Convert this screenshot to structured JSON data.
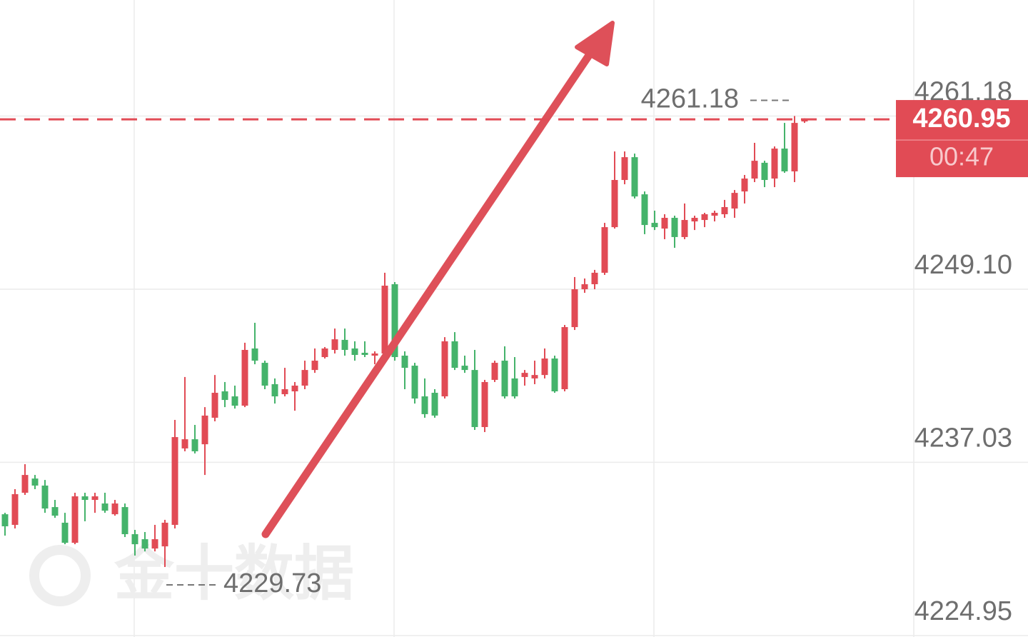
{
  "chart_data": {
    "type": "candlestick",
    "watermark": "金十数据",
    "countdown": "00:47",
    "up_color": "#e14b55",
    "down_color": "#45b36b",
    "ylim": [
      4224.85,
      4269.27
    ],
    "yticks": [
      4224.95,
      4237.03,
      {
        "value": 4249.1,
        "label": "4249.10"
      },
      4261.18
    ],
    "grid": true,
    "open": [
      4233.41,
      4232.67,
      4234.91,
      4235.9,
      4235.41,
      4233.91,
      4232.82,
      4231.42,
      4234.66,
      4234.41,
      4234.16,
      4233.41,
      4233.91,
      4232.02,
      4231.67,
      4231.02,
      4231.17,
      4232.67,
      4238.0,
      4238.64,
      4238.29,
      4240.14,
      4241.98,
      4241.63,
      4240.98,
      4244.97,
      4243.97,
      4242.48,
      4241.78,
      4241.98,
      4242.38,
      4243.47,
      4244.37,
      4244.87,
      4245.57,
      4244.97,
      4244.67,
      4244.47,
      4244.62,
      4249.45,
      4244.47,
      4243.77,
      4241.63,
      4241.88,
      4241.63,
      4245.47,
      4243.77,
      4243.47,
      4239.49,
      4242.78,
      4244.12,
      4242.88,
      4242.98,
      4242.88,
      4243.12,
      4244.27,
      4242.13,
      4246.46,
      4249.1,
      4249.45,
      4250.25,
      4253.43,
      4256.72,
      4258.31,
      4255.72,
      4253.73,
      4253.33,
      4254.08,
      4252.74,
      4253.83,
      4253.93,
      4254.23,
      4254.33,
      4254.73,
      4255.92,
      4256.82,
      4257.92,
      4256.82,
      4258.91,
      4257.32,
      4260.8
    ],
    "high": [
      4233.51,
      4235.16,
      4236.9,
      4236.15,
      4235.8,
      4234.41,
      4233.51,
      4234.91,
      4234.91,
      4234.91,
      4234.91,
      4234.41,
      4234.16,
      4232.32,
      4232.17,
      4232.67,
      4233.02,
      4239.99,
      4242.98,
      4239.64,
      4240.88,
      4243.12,
      4242.63,
      4242.38,
      4245.37,
      4246.76,
      4244.12,
      4242.88,
      4243.62,
      4242.63,
      4244.12,
      4244.97,
      4245.07,
      4246.36,
      4246.36,
      4245.47,
      4245.47,
      4244.77,
      4250.25,
      4249.6,
      4244.77,
      4243.97,
      4242.88,
      4242.13,
      4245.76,
      4246.11,
      4244.47,
      4244.87,
      4242.78,
      4244.12,
      4245.12,
      4244.37,
      4243.47,
      4244.12,
      4244.97,
      4244.47,
      4246.61,
      4249.95,
      4249.85,
      4250.45,
      4253.73,
      4258.71,
      4258.71,
      4258.56,
      4255.92,
      4254.58,
      4254.33,
      4254.23,
      4255.08,
      4254.23,
      4254.43,
      4254.58,
      4255.33,
      4256.02,
      4257.07,
      4259.31,
      4258.06,
      4259.06,
      4260.7,
      4261.18,
      4261.02
    ],
    "low": [
      4231.92,
      4232.42,
      4234.76,
      4235.16,
      4233.51,
      4233.16,
      4231.32,
      4231.32,
      4232.92,
      4233.51,
      4233.51,
      4233.31,
      4231.82,
      4230.53,
      4230.82,
      4230.82,
      4229.73,
      4232.42,
      4237.8,
      4237.65,
      4236.15,
      4239.89,
      4240.88,
      4240.78,
      4240.88,
      4243.87,
      4242.13,
      4241.13,
      4241.63,
      4240.63,
      4242.13,
      4243.27,
      4244.27,
      4244.62,
      4244.47,
      4244.12,
      4244.37,
      4243.87,
      4244.37,
      4244.12,
      4242.13,
      4241.13,
      4240.14,
      4240.14,
      4241.48,
      4243.47,
      4243.27,
      4239.29,
      4239.14,
      4242.63,
      4241.48,
      4241.48,
      4242.38,
      4242.48,
      4242.88,
      4241.88,
      4241.98,
      4246.26,
      4248.85,
      4249.1,
      4250.1,
      4253.33,
      4256.42,
      4255.43,
      4252.94,
      4253.23,
      4252.59,
      4251.99,
      4252.59,
      4253.23,
      4253.43,
      4253.83,
      4254.08,
      4254.08,
      4255.08,
      4256.57,
      4256.22,
      4256.22,
      4257.22,
      4256.57,
      4260.7
    ],
    "close": [
      4232.57,
      4234.81,
      4236.15,
      4235.41,
      4233.81,
      4233.31,
      4231.42,
      4234.66,
      4234.41,
      4234.66,
      4233.66,
      4234.16,
      4232.02,
      4231.32,
      4231.02,
      4231.67,
      4232.82,
      4238.79,
      4238.64,
      4237.8,
      4240.29,
      4241.88,
      4241.38,
      4240.98,
      4244.87,
      4244.12,
      4242.38,
      4241.63,
      4242.13,
      4242.38,
      4243.47,
      4244.12,
      4244.97,
      4245.61,
      4244.87,
      4244.52,
      4244.52,
      4244.62,
      4249.35,
      4244.37,
      4243.62,
      4241.48,
      4240.39,
      4240.29,
      4245.47,
      4243.62,
      4243.47,
      4239.49,
      4242.63,
      4243.97,
      4241.63,
      4241.63,
      4243.27,
      4243.12,
      4244.27,
      4241.98,
      4246.46,
      4249.1,
      4249.45,
      4250.25,
      4253.43,
      4256.72,
      4258.31,
      4255.57,
      4253.58,
      4253.43,
      4254.08,
      4252.74,
      4253.93,
      4254.08,
      4254.33,
      4254.43,
      4254.83,
      4255.82,
      4256.82,
      4258.06,
      4256.72,
      4258.91,
      4257.32,
      4260.7,
      4260.95
    ]
  }
}
